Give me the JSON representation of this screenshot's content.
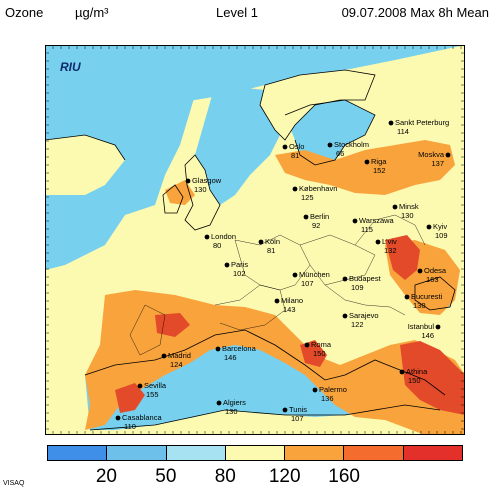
{
  "header": {
    "parameter": "Ozone",
    "unit": "µg/m³",
    "level": "Level  1",
    "date_metric": "09.07.2008 Max 8h Mean"
  },
  "logo": {
    "text": "RIU"
  },
  "footer": {
    "credit": "VISAQ"
  },
  "colors": {
    "sea": "#77d1ee",
    "land_low": "#fcf9b0",
    "land_mid": "#f8a33c",
    "land_high": "#e34a2a",
    "coast": "#000000"
  },
  "colorbar": {
    "colors": [
      "#3f8fe8",
      "#6cc0ea",
      "#a6e2f2",
      "#fcf9b0",
      "#f8a33c",
      "#f46d2f",
      "#e3302a"
    ],
    "ticks": [
      "20",
      "50",
      "80",
      "120",
      "160"
    ]
  },
  "chart_data": {
    "type": "map",
    "cities": [
      {
        "name": "Sankt Peterburg",
        "value": "114"
      },
      {
        "name": "Oslo",
        "value": "81"
      },
      {
        "name": "Stockholm",
        "value": "66"
      },
      {
        "name": "Moskva",
        "value": "137"
      },
      {
        "name": "Riga",
        "value": "152"
      },
      {
        "name": "Glasgow",
        "value": "130"
      },
      {
        "name": "København",
        "value": "125"
      },
      {
        "name": "Minsk",
        "value": "130"
      },
      {
        "name": "Berlin",
        "value": "92"
      },
      {
        "name": "Warszawa",
        "value": "115"
      },
      {
        "name": "Kyiv",
        "value": "109"
      },
      {
        "name": "London",
        "value": "80"
      },
      {
        "name": "Köln",
        "value": "81"
      },
      {
        "name": "L'viv",
        "value": "132"
      },
      {
        "name": "Paris",
        "value": "102"
      },
      {
        "name": "Odesa",
        "value": "163"
      },
      {
        "name": "München",
        "value": "107"
      },
      {
        "name": "Budapest",
        "value": "109"
      },
      {
        "name": "Bucuresti",
        "value": "130"
      },
      {
        "name": "Milano",
        "value": "143"
      },
      {
        "name": "Sarajevo",
        "value": "122"
      },
      {
        "name": "Istanbul",
        "value": "146"
      },
      {
        "name": "Barcelona",
        "value": "146"
      },
      {
        "name": "Madrid",
        "value": "124"
      },
      {
        "name": "Roma",
        "value": "150"
      },
      {
        "name": "Athina",
        "value": "150"
      },
      {
        "name": "Sevilla",
        "value": "155"
      },
      {
        "name": "Palermo",
        "value": "136"
      },
      {
        "name": "Algiers",
        "value": "130"
      },
      {
        "name": "Tunis",
        "value": "107"
      },
      {
        "name": "Casablanca",
        "value": "110"
      }
    ]
  }
}
